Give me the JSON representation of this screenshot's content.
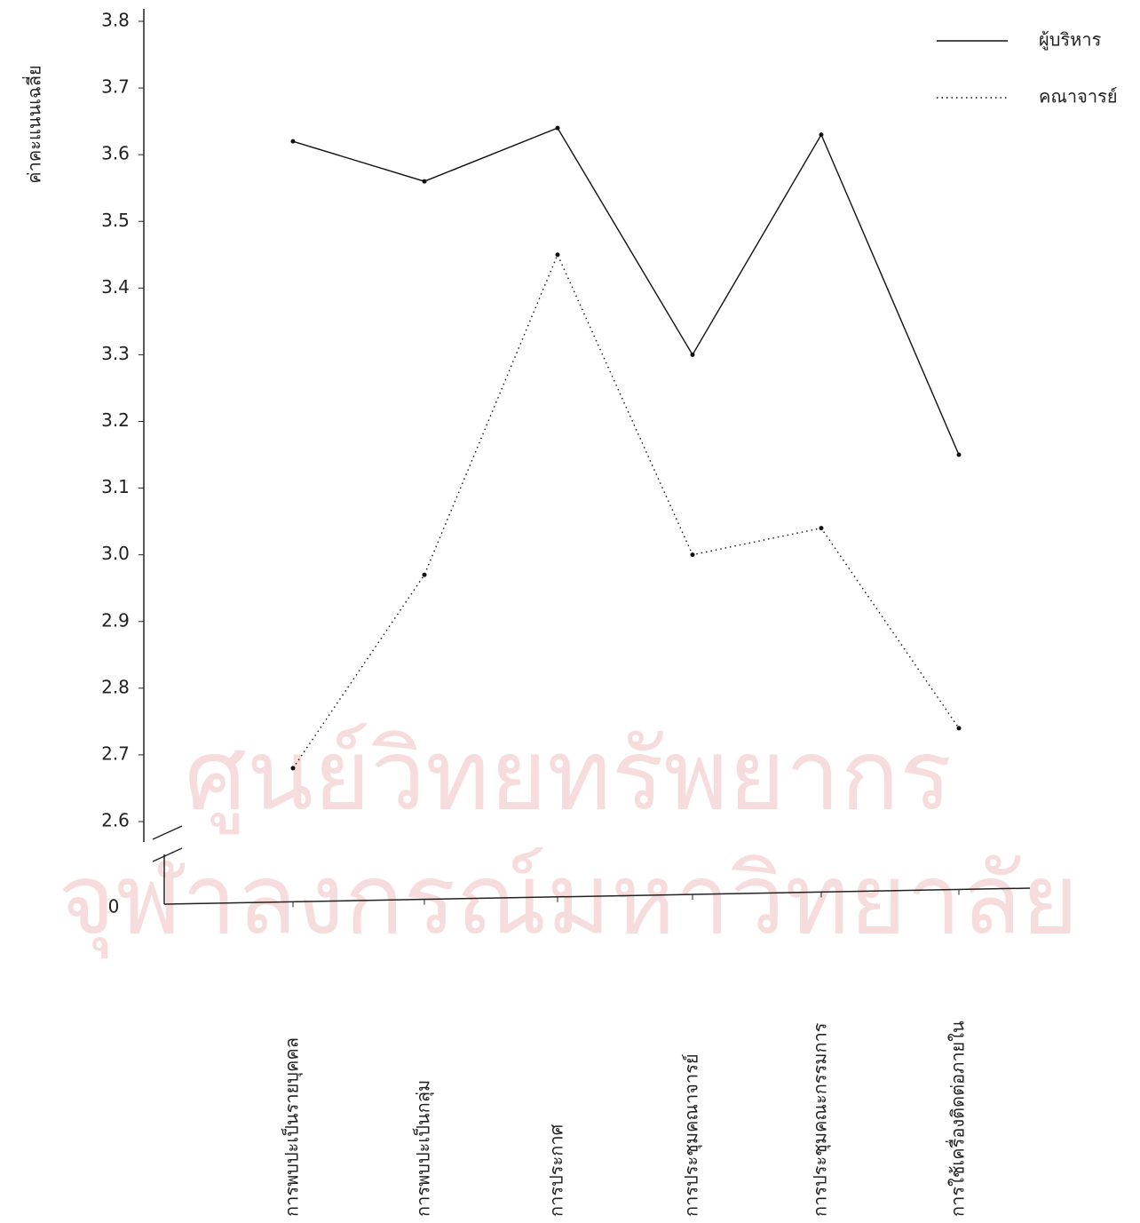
{
  "chart_data": {
    "type": "line",
    "y_axis_label": "ค่าคะแนนเฉลี่ย",
    "y_break_label": "0",
    "categories": [
      "การพบปะเป็นรายบุคคล",
      "การพบปะเป็นกลุ่ม",
      "การประกาศ",
      "การประชุมคณาจารย์",
      "การประชุมคณะกรรมการ",
      "การใช้เครื่องติดต่อภายใน"
    ],
    "series": [
      {
        "name": "ผู้บริหาร",
        "color": "#111111",
        "dash": "solid",
        "values": [
          3.62,
          3.56,
          3.64,
          3.3,
          3.63,
          3.15
        ]
      },
      {
        "name": "คณาจารย์",
        "color": "#111111",
        "dash": "dotted",
        "values": [
          2.68,
          2.97,
          3.45,
          3.0,
          3.04,
          2.74
        ]
      }
    ],
    "ylim": [
      2.6,
      3.8
    ],
    "yticks": [
      2.6,
      2.7,
      2.8,
      2.9,
      {
        "value": 3,
        "label": "3.0"
      },
      3.1,
      3.2,
      3.3,
      3.4,
      3.5,
      3.6,
      3.7,
      3.8
    ],
    "legend": "top-right",
    "watermark": [
      "ศูนย์วิทยทรัพยากร",
      "จุฬาลงกรณ์มหาวิทยาลัย"
    ]
  }
}
